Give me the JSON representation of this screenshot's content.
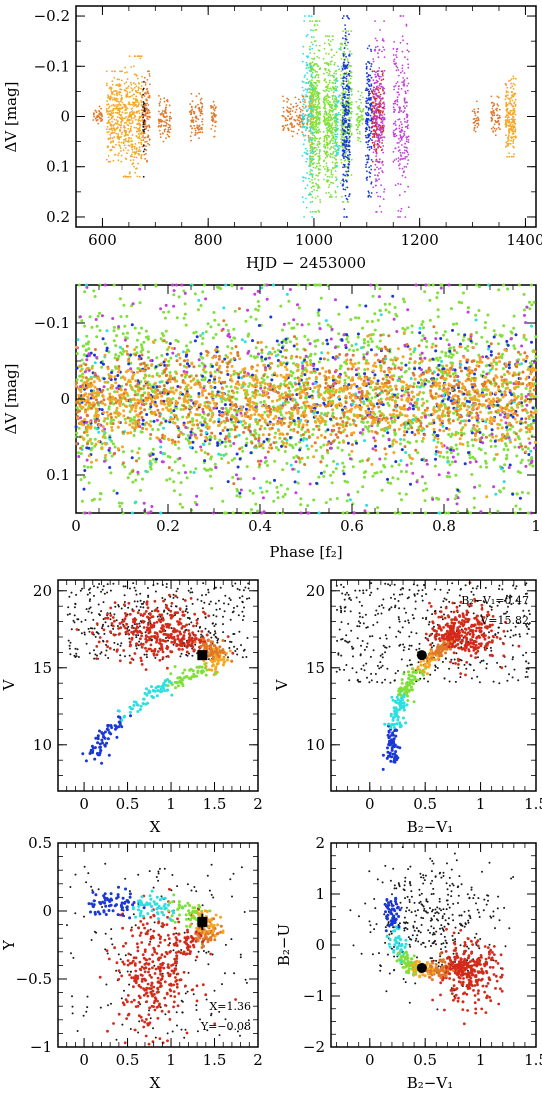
{
  "colors": {
    "points": [
      "#f5a623",
      "#e0782a",
      "#7fe03a",
      "#2be0e0",
      "#1a38d6",
      "#c040d8",
      "#1a1a1a"
    ],
    "sequence": [
      "#1a38d6",
      "#2be0e0",
      "#7fe03a",
      "#f5a623",
      "#e0782a",
      "#d42a1a"
    ],
    "background": "#1a1a1a",
    "marker": "#000000"
  },
  "chart_data": [
    {
      "id": "lightcurve",
      "type": "scatter",
      "xlabel": "HJD − 2453000",
      "ylabel": "ΔV [mag]",
      "xlim": [
        550,
        1420
      ],
      "ylim": [
        0.22,
        -0.22
      ],
      "xticks": [
        600,
        800,
        1000,
        1200,
        1400
      ],
      "yticks": [
        -0.2,
        -0.1,
        0,
        0.1,
        0.2
      ],
      "xtick_labels": [
        "600",
        "800",
        "1000",
        "1200",
        "1400"
      ],
      "ytick_labels": [
        "−0.2",
        "−0.1",
        "0",
        "0.1",
        "0.2"
      ],
      "series": [
        {
          "color": "#f5a623",
          "seasons": [
            [
              608,
              638,
              0.09,
              260
            ],
            [
              640,
              676,
              0.12,
              320
            ],
            [
              990,
              1000,
              0.08,
              60
            ],
            [
              1362,
              1382,
              0.08,
              200
            ]
          ]
        },
        {
          "color": "#e0782a",
          "seasons": [
            [
              582,
              600,
              0.02,
              40
            ],
            [
              675,
              690,
              0.09,
              120
            ],
            [
              706,
              730,
              0.05,
              90
            ],
            [
              765,
              790,
              0.05,
              90
            ],
            [
              805,
              815,
              0.04,
              40
            ],
            [
              940,
              990,
              0.04,
              120
            ],
            [
              1300,
              1312,
              0.03,
              30
            ],
            [
              1335,
              1352,
              0.04,
              60
            ]
          ]
        },
        {
          "color": "#7fe03a",
          "seasons": [
            [
              992,
              1012,
              0.19,
              420
            ],
            [
              1018,
              1044,
              0.16,
              420
            ],
            [
              1050,
              1072,
              0.17,
              300
            ],
            [
              1080,
              1094,
              0.05,
              60
            ]
          ]
        },
        {
          "color": "#2be0e0",
          "seasons": [
            [
              978,
              998,
              0.2,
              160
            ],
            [
              1040,
              1048,
              0.14,
              60
            ]
          ]
        },
        {
          "color": "#1a38d6",
          "seasons": [
            [
              1054,
              1068,
              0.2,
              260
            ],
            [
              1098,
              1110,
              0.16,
              180
            ]
          ]
        },
        {
          "color": "#d42a1a",
          "seasons": [
            [
              1110,
              1132,
              0.09,
              180
            ]
          ]
        },
        {
          "color": "#c040d8",
          "seasons": [
            [
              1112,
              1134,
              0.19,
              220
            ],
            [
              1150,
              1180,
              0.2,
              220
            ]
          ]
        },
        {
          "color": "#1a1a1a",
          "seasons": [
            [
              676,
              680,
              0.12,
              30
            ]
          ]
        }
      ]
    },
    {
      "id": "phase",
      "type": "scatter",
      "xlabel": "Phase [f₂]",
      "ylabel": "ΔV [mag]",
      "xlim": [
        0,
        1
      ],
      "ylim": [
        0.15,
        -0.15
      ],
      "xticks": [
        0,
        0.2,
        0.4,
        0.6,
        0.8,
        1
      ],
      "yticks": [
        -0.1,
        0,
        0.1
      ],
      "xtick_labels": [
        "0",
        "0.2",
        "0.4",
        "0.6",
        "0.8",
        "1"
      ],
      "ytick_labels": [
        "−0.1",
        "0",
        "0.1"
      ],
      "series": [
        {
          "color": "#7fe03a",
          "n": 1700,
          "sigma": 0.07
        },
        {
          "color": "#1a38d6",
          "n": 450,
          "sigma": 0.05
        },
        {
          "color": "#c040d8",
          "n": 300,
          "sigma": 0.08
        },
        {
          "color": "#2be0e0",
          "n": 150,
          "sigma": 0.08
        },
        {
          "color": "#e0782a",
          "n": 700,
          "sigma": 0.035
        },
        {
          "color": "#f5a623",
          "n": 1100,
          "sigma": 0.03
        }
      ]
    },
    {
      "id": "cmd-vx",
      "type": "scatter",
      "xlabel": "X",
      "ylabel": "V",
      "xlim": [
        -0.3,
        2
      ],
      "ylim": [
        7,
        20.7
      ],
      "xticks": [
        0,
        0.5,
        1,
        1.5,
        2
      ],
      "yticks": [
        10,
        15,
        20
      ],
      "xtick_labels": [
        "0",
        "0.5",
        "1",
        "1.5",
        "2"
      ],
      "ytick_labels": [
        "10",
        "15",
        "20"
      ],
      "marker": {
        "x": 1.36,
        "y": 15.82
      }
    },
    {
      "id": "cmd-vbv",
      "type": "scatter",
      "xlabel": "B₂−V₁",
      "ylabel": "V",
      "xlim": [
        -0.35,
        1.5
      ],
      "ylim": [
        7,
        20.7
      ],
      "xticks": [
        0,
        0.5,
        1,
        1.5
      ],
      "yticks": [
        10,
        15,
        20
      ],
      "xtick_labels": [
        "0",
        "0.5",
        "1",
        "1.5"
      ],
      "ytick_labels": [
        "10",
        "15",
        "20"
      ],
      "marker": {
        "x": 0.47,
        "y": 15.82
      }
    },
    {
      "id": "ccd-yx",
      "type": "scatter",
      "xlabel": "X",
      "ylabel": "Y",
      "xlim": [
        -0.3,
        2
      ],
      "ylim": [
        -1,
        0.5
      ],
      "xticks": [
        0,
        0.5,
        1,
        1.5,
        2
      ],
      "yticks": [
        -1,
        -0.5,
        0,
        0.5
      ],
      "xtick_labels": [
        "0",
        "0.5",
        "1",
        "1.5",
        "2"
      ],
      "ytick_labels": [
        "−1",
        "−0.5",
        "0",
        "0.5"
      ],
      "marker": {
        "x": 1.36,
        "y": -0.08,
        "err": 0.06
      }
    },
    {
      "id": "ccd-ubv",
      "type": "scatter",
      "xlabel": "B₂−V₁",
      "ylabel": "B₂−U",
      "xlim": [
        -0.35,
        1.5
      ],
      "ylim": [
        -2,
        2
      ],
      "xticks": [
        0,
        0.5,
        1,
        1.5
      ],
      "yticks": [
        -2,
        -1,
        0,
        1,
        2
      ],
      "xtick_labels": [
        "0",
        "0.5",
        "1",
        "1.5"
      ],
      "ytick_labels": [
        "−2",
        "−1",
        "0",
        "1",
        "2"
      ],
      "marker": {
        "x": 0.47,
        "y": -0.45
      }
    }
  ],
  "annotations": {
    "cmd_vbv_line1": "B₂−V₁=0.47",
    "cmd_vbv_line2": "V=15.82",
    "ccd_yx_line1": "X=1.36",
    "ccd_yx_line2": "Y=−0.08"
  }
}
